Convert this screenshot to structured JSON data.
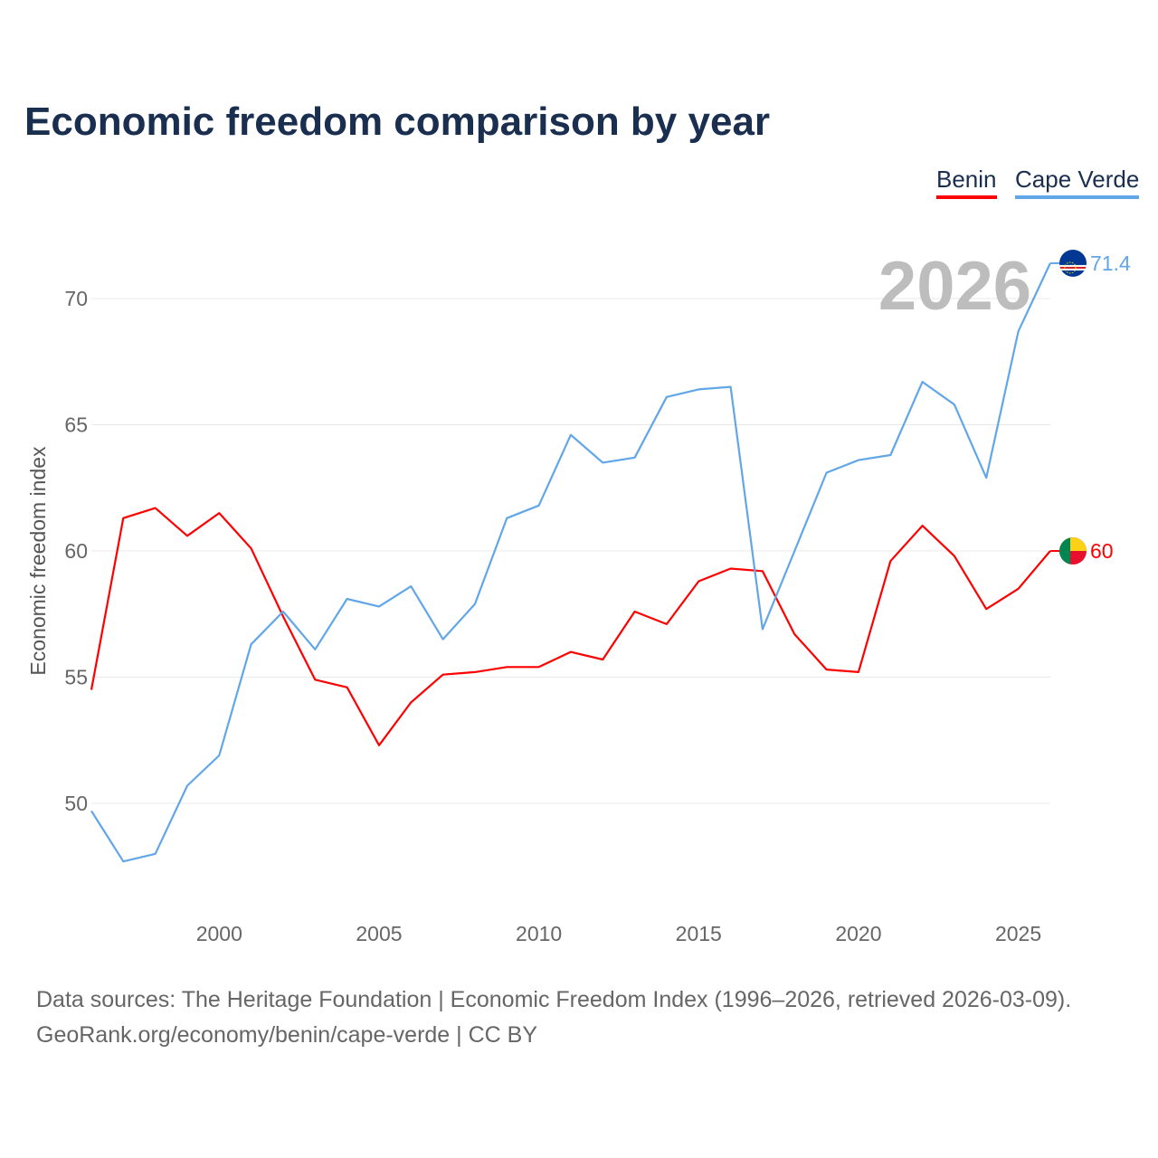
{
  "title": "Economic freedom comparison by year",
  "footer": {
    "line1": "Data sources: The Heritage Foundation | Economic Freedom Index (1996–2026, retrieved 2026-03-09).",
    "line2": "GeoRank.org/economy/benin/cape-verde | CC BY"
  },
  "chart_data": {
    "type": "line",
    "title": "Economic freedom comparison by year",
    "ylabel": "Economic freedom index",
    "xlabel": "",
    "year_watermark": "2026",
    "x": [
      1996,
      1997,
      1998,
      1999,
      2000,
      2001,
      2002,
      2003,
      2004,
      2005,
      2006,
      2007,
      2008,
      2009,
      2010,
      2011,
      2012,
      2013,
      2014,
      2015,
      2016,
      2017,
      2018,
      2019,
      2020,
      2021,
      2022,
      2023,
      2024,
      2025,
      2026
    ],
    "xlim": [
      1996,
      2026
    ],
    "ylim": [
      46,
      73
    ],
    "xticks": [
      2000,
      2005,
      2010,
      2015,
      2020,
      2025
    ],
    "yticks": [
      50,
      55,
      60,
      65,
      70
    ],
    "grid": true,
    "legend_position": "top-right",
    "series": [
      {
        "name": "Benin",
        "color": "#ff0000",
        "end_label": "60",
        "flag": "benin-flag",
        "values": [
          54.5,
          61.3,
          61.7,
          60.6,
          61.5,
          60.1,
          57.4,
          54.9,
          54.6,
          52.3,
          54.0,
          55.1,
          55.2,
          55.4,
          55.4,
          56.0,
          55.7,
          57.6,
          57.1,
          58.8,
          59.3,
          59.2,
          56.7,
          55.3,
          55.2,
          59.6,
          61.0,
          59.8,
          57.7,
          58.5,
          60.0
        ]
      },
      {
        "name": "Cape Verde",
        "color": "#61a6e8",
        "end_label": "71.4",
        "flag": "cape-verde-flag",
        "values": [
          49.7,
          47.7,
          48.0,
          50.7,
          51.9,
          56.3,
          57.6,
          56.1,
          58.1,
          57.8,
          58.6,
          56.5,
          57.9,
          61.3,
          61.8,
          64.6,
          63.5,
          63.7,
          66.1,
          66.4,
          66.5,
          56.9,
          60.0,
          63.1,
          63.6,
          63.8,
          66.7,
          65.8,
          62.9,
          68.7,
          71.4
        ]
      }
    ]
  }
}
